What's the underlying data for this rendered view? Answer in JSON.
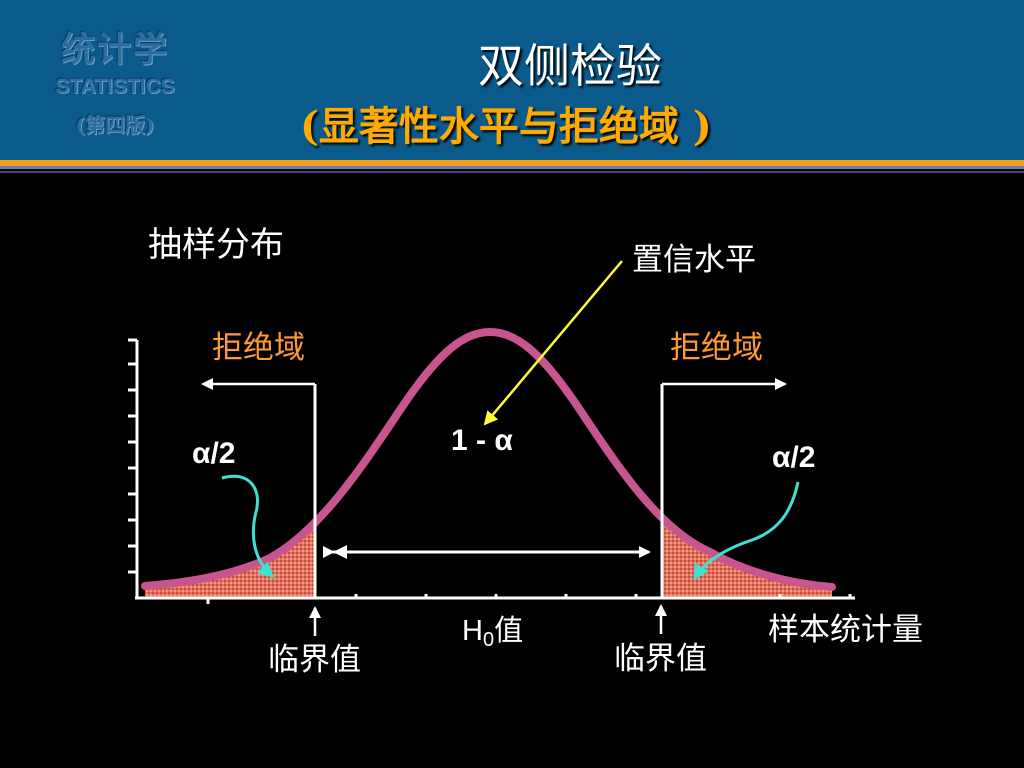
{
  "logo": {
    "name": "统计学",
    "en": "STATISTICS",
    "edition": "(第四版)"
  },
  "slide": {
    "title": "双侧检验",
    "subtitle": "(显著性水平与拒绝域 )"
  },
  "diagram": {
    "sampling_label": "抽样分布",
    "confidence_label": "置信水平",
    "reject_left": "拒绝域",
    "reject_right": "拒绝域",
    "alpha_half_left": "α/2",
    "alpha_half_right": "α/2",
    "center_value": "1 - α",
    "h0_main": "H",
    "h0_sub": "0",
    "h0_suffix": "值",
    "critical_left": "临界值",
    "critical_right": "临界值",
    "axis_label": "样本统计量"
  },
  "colors": {
    "header": "#0a5a8c",
    "curve": "#c8558f",
    "reject_text": "#ff9933",
    "pointer": "#ffff33",
    "alpha_arrow": "#40e0d0",
    "tail_fill": "#e8705a"
  }
}
